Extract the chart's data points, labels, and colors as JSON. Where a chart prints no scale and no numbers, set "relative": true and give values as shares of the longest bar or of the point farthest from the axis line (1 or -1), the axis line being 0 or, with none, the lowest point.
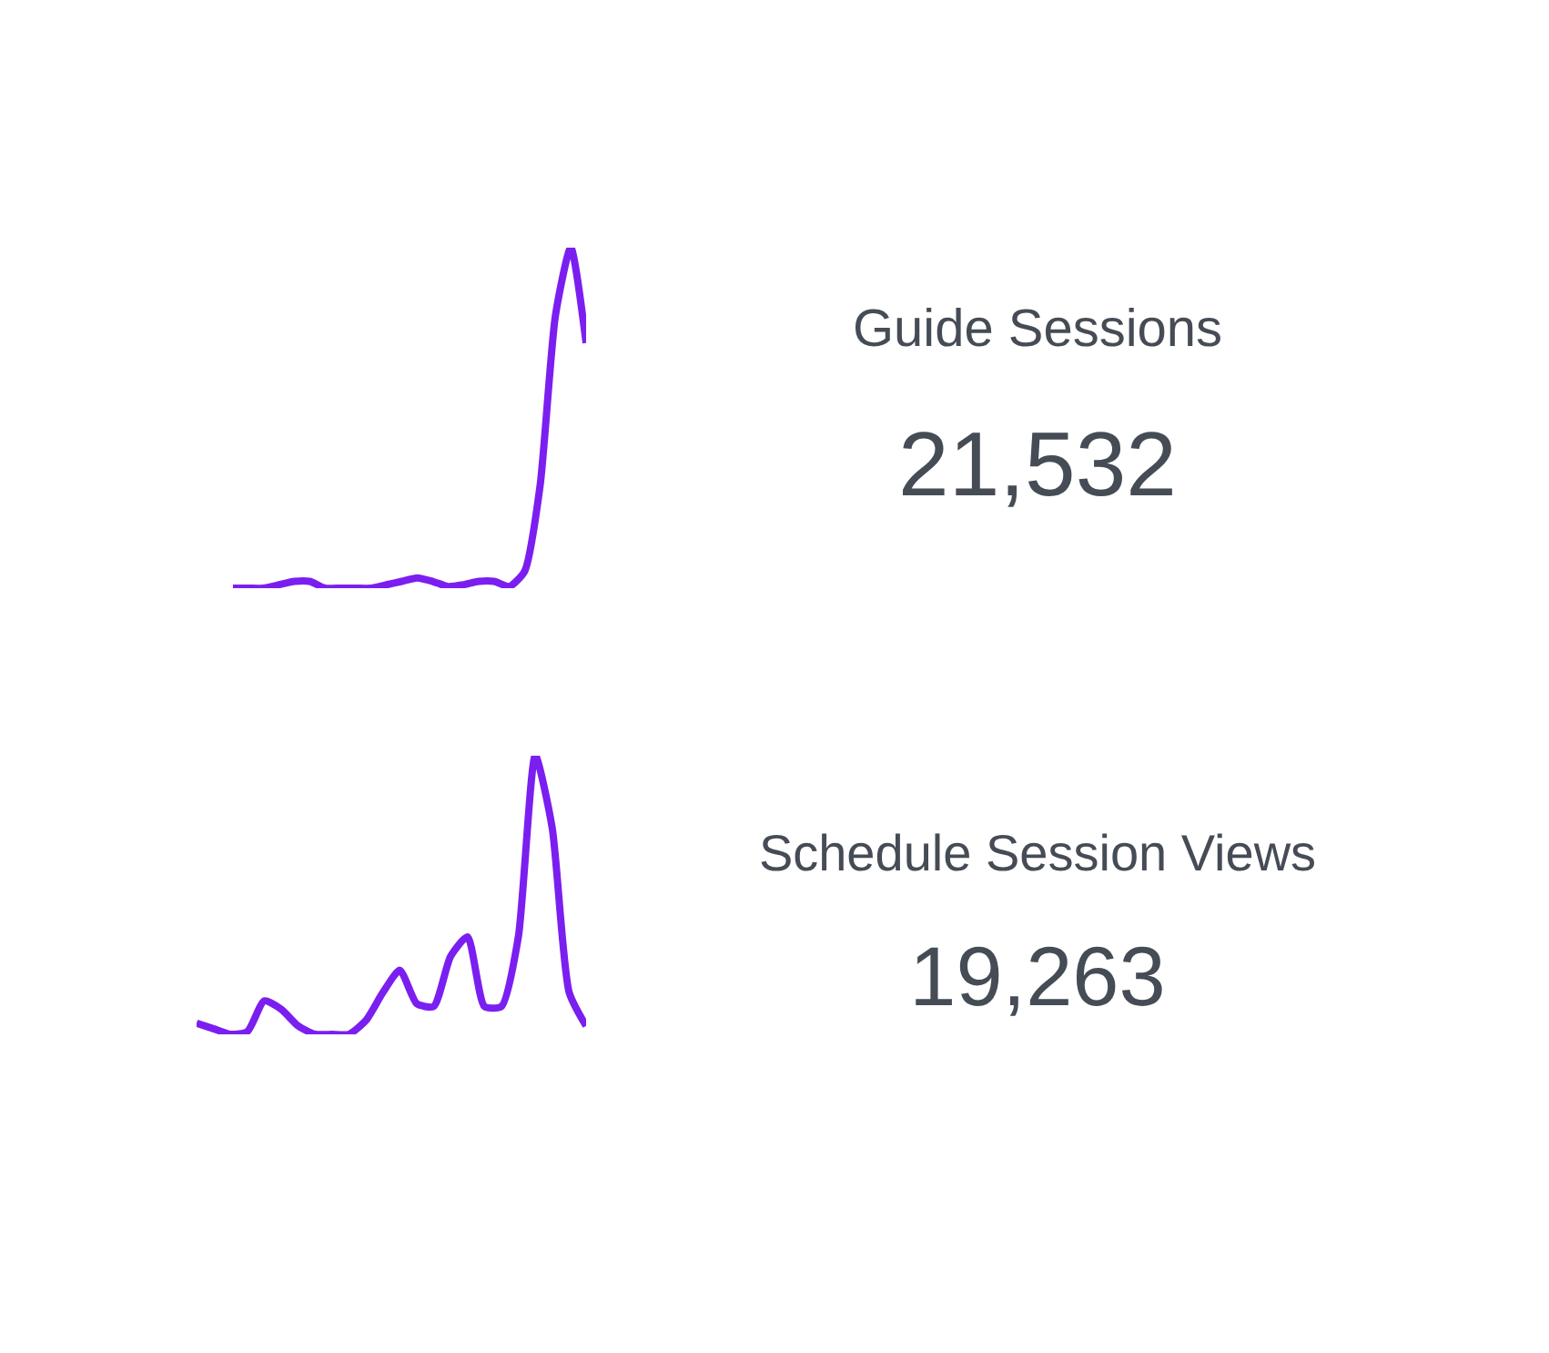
{
  "chart_data": [
    {
      "type": "line",
      "relative": true,
      "color": "#7b1ff0",
      "categories": [
        null,
        null,
        null,
        null,
        null,
        null,
        null,
        null,
        null,
        null,
        null,
        null,
        null,
        null,
        null,
        null,
        null,
        null,
        null,
        null,
        null,
        null,
        null,
        null
      ],
      "values": [
        0,
        0,
        0,
        0.01,
        0.02,
        0.02,
        0,
        0,
        0,
        0,
        0.01,
        0.02,
        0.03,
        0.02,
        0.005,
        0.01,
        0.02,
        0.02,
        0.005,
        0.05,
        0.3,
        0.8,
        1,
        0.72
      ]
    },
    {
      "type": "other",
      "title": "Guide Sessions",
      "annotations": [
        "21,532"
      ]
    },
    {
      "type": "line",
      "relative": true,
      "color": "#7b1ff0",
      "categories": [
        null,
        null,
        null,
        null,
        null,
        null,
        null,
        null,
        null,
        null,
        null,
        null,
        null,
        null,
        null,
        null,
        null,
        null,
        null,
        null,
        null,
        null,
        null,
        null
      ],
      "values": [
        0.04,
        0.02,
        0,
        0.01,
        0.12,
        0.09,
        0.03,
        0,
        0,
        0,
        0.05,
        0.15,
        0.23,
        0.11,
        0.1,
        0.28,
        0.35,
        0.1,
        0.1,
        0.35,
        1,
        0.74,
        0.15,
        0.03
      ]
    },
    {
      "type": "other",
      "title": "Schedule Session Views",
      "annotations": [
        "19,263"
      ]
    }
  ]
}
